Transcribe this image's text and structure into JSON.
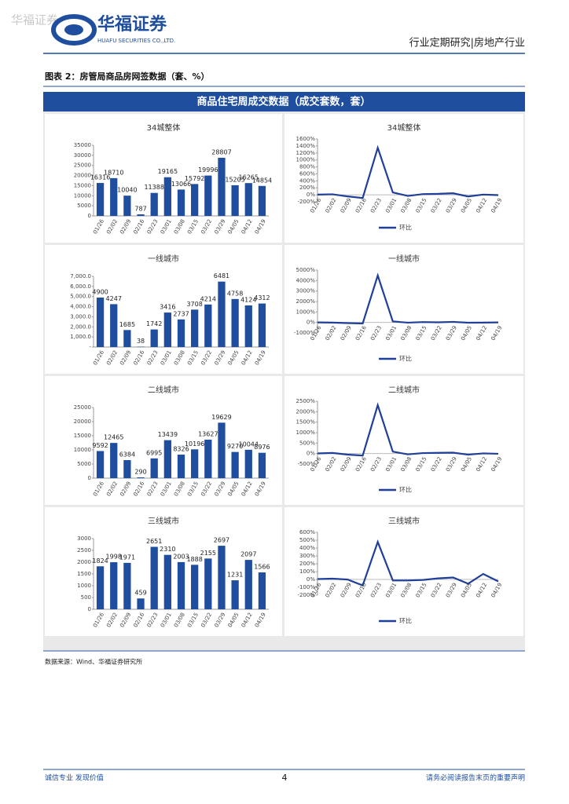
{
  "header": {
    "watermark": "华福证券",
    "logo_name": "华福证券",
    "logo_en": "HUAFU SECURITIES CO.,LTD.",
    "report_type": "行业定期研究|房地产行业"
  },
  "figure": {
    "caption": "图表 2：房管局商品房网签数据（套、%）",
    "panel_title": "商品住宅周成交数据（成交套数，套）",
    "source": "数据来源：Wind、华福证券研究所"
  },
  "footer": {
    "left": "诚信专业  发现价值",
    "page": "4",
    "right": "请务必阅读报告末页的重要声明"
  },
  "chart_data": [
    {
      "type": "bar",
      "title": "34城整体",
      "color": "#1f4e9e",
      "categories": [
        "01/26",
        "02/02",
        "02/09",
        "02/16",
        "02/23",
        "03/01",
        "03/08",
        "03/15",
        "03/22",
        "03/29",
        "04/05",
        "04/12",
        "04/19"
      ],
      "values": [
        16316,
        18710,
        10040,
        787,
        11388,
        19165,
        13066,
        15792,
        19996,
        28807,
        15205,
        16265,
        14854
      ],
      "ylim": [
        0,
        35000
      ],
      "yticks": [
        0,
        5000,
        10000,
        15000,
        20000,
        25000,
        30000,
        35000
      ]
    },
    {
      "type": "line",
      "title": "34城整体",
      "categories": [
        "01/26",
        "02/02",
        "02/09",
        "02/16",
        "02/23",
        "03/01",
        "03/08",
        "03/15",
        "03/22",
        "03/29",
        "04/05",
        "04/12",
        "04/19"
      ],
      "series": [
        {
          "name": "环比",
          "color": "#1f3f99",
          "values": [
            5,
            15,
            -46,
            -92,
            1347,
            68,
            -32,
            21,
            27,
            44,
            -47,
            7,
            -9
          ]
        }
      ],
      "ylim": [
        -200,
        1600
      ],
      "yticks": [
        {
          "value": -200,
          "label": "-200%"
        },
        {
          "value": 0,
          "label": "0%"
        },
        {
          "value": 200,
          "label": "200%"
        },
        {
          "value": 400,
          "label": "400%"
        },
        {
          "value": 600,
          "label": "600%"
        },
        {
          "value": 800,
          "label": "800%"
        },
        {
          "value": 1000,
          "label": "1000%"
        },
        {
          "value": 1200,
          "label": "1200%"
        },
        {
          "value": 1400,
          "label": "1400%"
        },
        {
          "value": 1600,
          "label": "1600%"
        }
      ]
    },
    {
      "type": "bar",
      "title": "一线城市",
      "color": "#1f4e9e",
      "categories": [
        "01/26",
        "02/02",
        "02/09",
        "02/16",
        "02/23",
        "03/01",
        "03/08",
        "03/15",
        "03/22",
        "03/29",
        "04/05",
        "04/12",
        "04/19"
      ],
      "values": [
        4900,
        4247,
        1685,
        38,
        1742,
        3416,
        2737,
        3708,
        4214,
        6481,
        4758,
        4124,
        4312
      ],
      "ylim": [
        0,
        7000
      ],
      "yticks": [
        {
          "value": 0,
          "label": "-"
        },
        {
          "value": 1000,
          "label": "1,000.0"
        },
        {
          "value": 2000,
          "label": "2,000.0"
        },
        {
          "value": 3000,
          "label": "3,000.0"
        },
        {
          "value": 4000,
          "label": "4,000.0"
        },
        {
          "value": 5000,
          "label": "5,000.0"
        },
        {
          "value": 6000,
          "label": "6,000.0"
        },
        {
          "value": 7000,
          "label": "7,000.0"
        }
      ]
    },
    {
      "type": "line",
      "title": "一线城市",
      "categories": [
        "01/26",
        "02/02",
        "02/09",
        "02/16",
        "02/23",
        "03/01",
        "03/08",
        "03/15",
        "03/22",
        "03/29",
        "04/05",
        "04/12",
        "04/19"
      ],
      "series": [
        {
          "name": "环比",
          "color": "#1f3f99",
          "values": [
            5,
            -13,
            -60,
            -98,
            4484,
            96,
            -20,
            35,
            14,
            54,
            -27,
            -13,
            5
          ]
        }
      ],
      "ylim": [
        -1000,
        5000
      ],
      "yticks": [
        {
          "value": -1000,
          "label": "-1000%"
        },
        {
          "value": 0,
          "label": "0%"
        },
        {
          "value": 1000,
          "label": "1000%"
        },
        {
          "value": 2000,
          "label": "2000%"
        },
        {
          "value": 3000,
          "label": "3000%"
        },
        {
          "value": 4000,
          "label": "4000%"
        },
        {
          "value": 5000,
          "label": "5000%"
        }
      ]
    },
    {
      "type": "bar",
      "title": "二线城市",
      "color": "#1f4e9e",
      "categories": [
        "01/26",
        "02/02",
        "02/09",
        "02/16",
        "02/23",
        "03/01",
        "03/08",
        "03/15",
        "03/22",
        "03/29",
        "04/05",
        "04/12",
        "04/19"
      ],
      "values": [
        9592,
        12465,
        6384,
        290,
        6995,
        13439,
        8326,
        10196,
        13627,
        19629,
        9270,
        10044,
        8976
      ],
      "ylim": [
        0,
        25000
      ],
      "yticks": [
        0,
        5000,
        10000,
        15000,
        20000,
        25000
      ]
    },
    {
      "type": "line",
      "title": "二线城市",
      "categories": [
        "01/26",
        "02/02",
        "02/09",
        "02/16",
        "02/23",
        "03/01",
        "03/08",
        "03/15",
        "03/22",
        "03/29",
        "04/05",
        "04/12",
        "04/19"
      ],
      "series": [
        {
          "name": "环比",
          "color": "#1f3f99",
          "values": [
            5,
            30,
            -49,
            -95,
            2312,
            92,
            -38,
            22,
            34,
            44,
            -53,
            8,
            -11
          ]
        }
      ],
      "ylim": [
        -500,
        2500
      ],
      "yticks": [
        {
          "value": -500,
          "label": "-500%"
        },
        {
          "value": 0,
          "label": "0%"
        },
        {
          "value": 500,
          "label": "500%"
        },
        {
          "value": 1000,
          "label": "1000%"
        },
        {
          "value": 1500,
          "label": "1500%"
        },
        {
          "value": 2000,
          "label": "2000%"
        },
        {
          "value": 2500,
          "label": "2500%"
        }
      ]
    },
    {
      "type": "bar",
      "title": "三线城市",
      "color": "#1f4e9e",
      "categories": [
        "01/26",
        "02/02",
        "02/09",
        "02/16",
        "02/23",
        "03/01",
        "03/08",
        "03/15",
        "03/22",
        "03/29",
        "04/05",
        "04/12",
        "04/19"
      ],
      "values": [
        1824,
        1998,
        1971,
        459,
        2651,
        2310,
        2003,
        1888,
        2155,
        2697,
        1231,
        2097,
        1566
      ],
      "ylim": [
        0,
        3000
      ],
      "yticks": [
        0,
        500,
        1000,
        1500,
        2000,
        2500,
        3000
      ]
    },
    {
      "type": "line",
      "title": "三线城市",
      "categories": [
        "01/26",
        "02/02",
        "02/09",
        "02/16",
        "02/23",
        "03/01",
        "03/08",
        "03/15",
        "03/22",
        "03/29",
        "04/05",
        "04/12",
        "04/19"
      ],
      "series": [
        {
          "name": "环比",
          "color": "#1f3f99",
          "values": [
            5,
            10,
            -1,
            -77,
            478,
            -13,
            -13,
            -6,
            14,
            25,
            -54,
            70,
            -25
          ]
        }
      ],
      "ylim": [
        -200,
        600
      ],
      "yticks": [
        {
          "value": -200,
          "label": "-200%"
        },
        {
          "value": -100,
          "label": "-100%"
        },
        {
          "value": 0,
          "label": "0%"
        },
        {
          "value": 100,
          "label": "100%"
        },
        {
          "value": 200,
          "label": "200%"
        },
        {
          "value": 300,
          "label": "300%"
        },
        {
          "value": 400,
          "label": "400%"
        },
        {
          "value": 500,
          "label": "500%"
        },
        {
          "value": 600,
          "label": "600%"
        }
      ]
    }
  ]
}
